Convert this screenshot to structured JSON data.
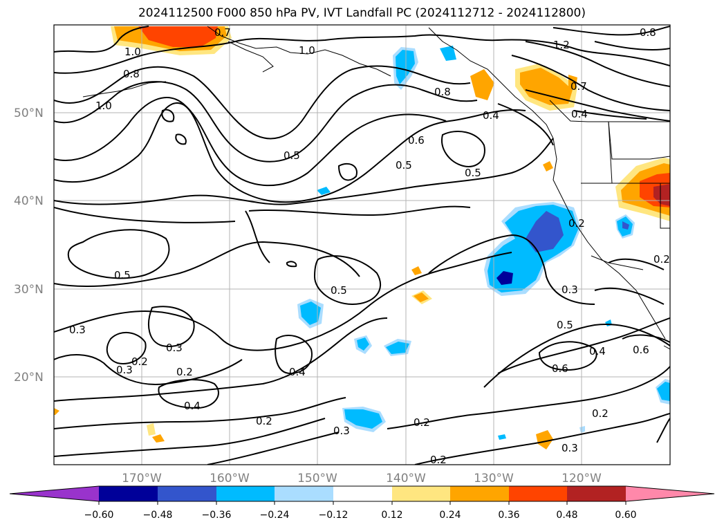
{
  "title": "2024112500 F000 850 hPa PV, IVT Landfall PC (2024112712 - 2024112800)",
  "latitude_labels": [
    "50°N",
    "40°N",
    "30°N",
    "20°N"
  ],
  "longitude_labels": [
    "170°W",
    "160°W",
    "150°W",
    "140°W",
    "130°W",
    "120°W"
  ],
  "colorbar": {
    "tick_labels": [
      "−0.60",
      "−0.48",
      "−0.36",
      "−0.24",
      "−0.12",
      "0.12",
      "0.24",
      "0.36",
      "0.48",
      "0.60"
    ],
    "colors": [
      "#9933cc",
      "#000099",
      "#3355cc",
      "#00bbff",
      "#aaddff",
      "#ffffff",
      "#ffe680",
      "#ffa500",
      "#ff4400",
      "#b22222",
      "#ff88aa"
    ]
  },
  "contour_labels": [
    "1.0",
    "0.8",
    "1.0",
    "0.7",
    "1.0",
    "0.8",
    "1.2",
    "0.7",
    "0.8",
    "0.4",
    "0.4",
    "0.5",
    "0.5",
    "0.6",
    "0.5",
    "0.2",
    "0.5",
    "0.5",
    "0.3",
    "0.3",
    "0.2",
    "0.3",
    "0.3",
    "0.2",
    "0.4",
    "0.4",
    "0.2",
    "0.3",
    "0.2",
    "0.5",
    "0.6",
    "0.4",
    "0.6",
    "0.2",
    "0.3",
    "0.2",
    "0.2"
  ]
}
